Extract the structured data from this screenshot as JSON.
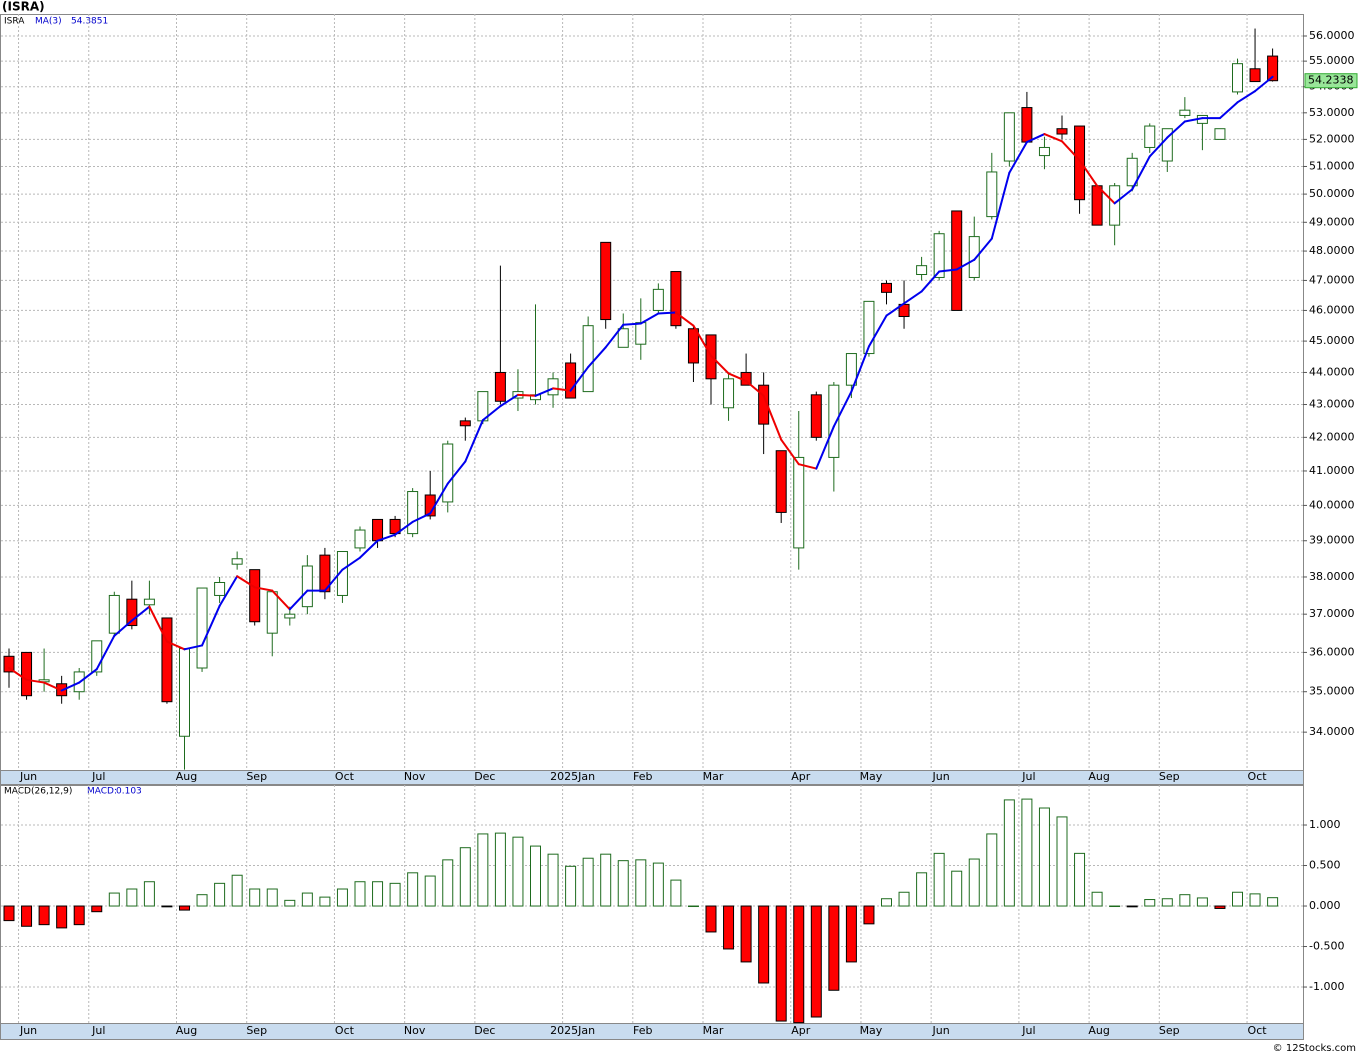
{
  "title": "(ISRA)",
  "footer": "© 12Stocks.com",
  "chart_data": [
    {
      "type": "candlestick",
      "symbol": "ISRA",
      "categories": [
        null,
        "Jun",
        null,
        null,
        null,
        "Jul",
        null,
        null,
        null,
        null,
        "Aug",
        null,
        null,
        null,
        "Sep",
        null,
        null,
        null,
        null,
        "Oct",
        null,
        null,
        null,
        "Nov",
        null,
        null,
        null,
        "Dec",
        null,
        null,
        null,
        null,
        "2025Jan",
        null,
        null,
        null,
        "Feb",
        null,
        null,
        null,
        "Mar",
        null,
        null,
        null,
        null,
        "Apr",
        null,
        null,
        null,
        "May",
        null,
        null,
        null,
        "Jun",
        null,
        null,
        null,
        null,
        "Jul",
        null,
        null,
        null,
        "Aug",
        null,
        null,
        null,
        "Sep",
        null,
        null,
        null,
        null,
        "Oct",
        null
      ],
      "open": [
        35.9,
        36.0,
        35.25,
        35.2,
        35.0,
        35.5,
        36.5,
        37.4,
        37.25,
        36.9,
        33.9,
        35.6,
        37.5,
        38.35,
        38.2,
        36.5,
        36.9,
        37.2,
        38.6,
        37.5,
        38.8,
        39.6,
        39.6,
        39.2,
        40.3,
        40.1,
        42.5,
        42.5,
        44.0,
        43.2,
        43.15,
        43.3,
        44.3,
        43.4,
        48.3,
        44.8,
        44.9,
        46.0,
        47.3,
        45.4,
        45.2,
        42.9,
        44.0,
        43.6,
        41.6,
        38.8,
        43.3,
        41.4,
        43.6,
        44.6,
        46.9,
        46.2,
        47.2,
        47.1,
        49.4,
        47.1,
        49.2,
        51.2,
        53.2,
        51.4,
        52.4,
        52.5,
        50.3,
        48.9,
        50.3,
        51.7,
        51.2,
        52.9,
        52.6,
        52.0,
        53.8,
        54.7,
        55.2
      ],
      "high": [
        36.1,
        36.0,
        36.1,
        35.4,
        35.6,
        36.3,
        37.6,
        37.9,
        37.9,
        36.9,
        36.1,
        37.7,
        38.0,
        38.7,
        38.2,
        37.6,
        37.2,
        38.6,
        38.8,
        38.7,
        39.4,
        39.6,
        39.7,
        40.5,
        41.0,
        41.9,
        42.6,
        43.4,
        47.5,
        44.1,
        46.2,
        44.0,
        44.6,
        45.8,
        48.3,
        45.9,
        46.4,
        46.9,
        47.3,
        45.5,
        45.2,
        44.0,
        44.6,
        44.0,
        41.6,
        42.8,
        43.4,
        43.7,
        44.6,
        46.3,
        47.0,
        47.0,
        47.8,
        48.7,
        49.4,
        49.2,
        51.5,
        53.0,
        53.8,
        52.1,
        52.9,
        52.5,
        50.3,
        50.4,
        51.5,
        52.6,
        52.4,
        53.6,
        52.9,
        52.4,
        55.1,
        56.3,
        55.5
      ],
      "low": [
        35.1,
        34.8,
        35.0,
        34.7,
        34.8,
        35.4,
        36.4,
        36.6,
        37.0,
        34.7,
        33.1,
        35.5,
        37.3,
        38.2,
        36.7,
        35.9,
        36.7,
        37.0,
        37.4,
        37.3,
        38.7,
        38.8,
        39.1,
        39.1,
        39.6,
        39.8,
        41.9,
        42.4,
        43.0,
        42.8,
        43.0,
        42.9,
        43.2,
        43.4,
        45.4,
        44.8,
        44.4,
        45.9,
        45.4,
        43.7,
        43.0,
        42.5,
        43.6,
        41.5,
        39.5,
        38.2,
        41.9,
        40.4,
        43.2,
        44.5,
        46.2,
        45.4,
        47.0,
        47.0,
        46.0,
        47.0,
        49.1,
        51.0,
        51.9,
        50.9,
        52.0,
        49.3,
        48.9,
        48.2,
        50.1,
        51.5,
        50.8,
        52.8,
        51.6,
        52.0,
        53.7,
        54.2,
        54.2
      ],
      "close": [
        35.5,
        34.9,
        35.3,
        34.9,
        35.5,
        36.3,
        37.5,
        36.7,
        37.4,
        34.75,
        36.1,
        37.7,
        37.85,
        38.5,
        36.8,
        37.6,
        37.0,
        38.3,
        37.6,
        38.7,
        39.3,
        39.0,
        39.2,
        40.4,
        39.7,
        41.8,
        42.35,
        43.4,
        43.1,
        43.4,
        43.3,
        43.8,
        43.2,
        45.5,
        45.7,
        45.4,
        45.6,
        46.7,
        45.5,
        44.3,
        43.8,
        43.8,
        43.6,
        42.4,
        39.8,
        41.4,
        42.0,
        43.6,
        44.6,
        46.3,
        46.6,
        45.8,
        47.5,
        48.6,
        46.0,
        48.5,
        50.8,
        53.0,
        51.9,
        51.7,
        52.2,
        49.8,
        48.9,
        50.3,
        51.3,
        52.5,
        52.4,
        53.1,
        52.9,
        52.4,
        54.9,
        54.2,
        54.2338
      ],
      "up_color": "#1e6b1e",
      "down_color": "#ff0000",
      "ma": {
        "name": "MA(3)",
        "up_color": "#0000ee",
        "down_color": "#ee0000",
        "values": [
          35.6,
          35.3,
          35.23,
          35.03,
          35.23,
          35.57,
          36.43,
          36.83,
          37.2,
          36.28,
          36.08,
          36.18,
          37.22,
          38.02,
          37.72,
          37.63,
          37.13,
          37.63,
          37.63,
          38.2,
          38.53,
          39.0,
          39.17,
          39.53,
          39.77,
          40.63,
          41.28,
          42.52,
          42.95,
          43.3,
          43.27,
          43.5,
          43.43,
          44.17,
          44.8,
          45.53,
          45.57,
          45.9,
          45.93,
          45.5,
          44.53,
          43.97,
          43.73,
          43.27,
          41.93,
          41.2,
          41.07,
          42.33,
          43.4,
          44.83,
          45.83,
          46.23,
          46.63,
          47.3,
          47.37,
          47.7,
          48.43,
          50.77,
          51.9,
          52.2,
          51.93,
          51.23,
          50.3,
          49.67,
          50.17,
          51.37,
          52.07,
          52.67,
          52.8,
          52.8,
          53.4,
          53.83,
          54.3851
        ]
      },
      "log_scale": true,
      "grid": true,
      "ylim": [
        33.09,
        56.89
      ],
      "yticks": [
        {
          "value": 34,
          "label": "34.0000"
        },
        {
          "value": 35,
          "label": "35.0000"
        },
        {
          "value": 36,
          "label": "36.0000"
        },
        {
          "value": 37,
          "label": "37.0000"
        },
        {
          "value": 38,
          "label": "38.0000"
        },
        {
          "value": 39,
          "label": "39.0000"
        },
        {
          "value": 40,
          "label": "40.0000"
        },
        {
          "value": 41,
          "label": "41.0000"
        },
        {
          "value": 42,
          "label": "42.0000"
        },
        {
          "value": 43,
          "label": "43.0000"
        },
        {
          "value": 44,
          "label": "44.0000"
        },
        {
          "value": 45,
          "label": "45.0000"
        },
        {
          "value": 46,
          "label": "46.0000"
        },
        {
          "value": 47,
          "label": "47.0000"
        },
        {
          "value": 48,
          "label": "48.0000"
        },
        {
          "value": 49,
          "label": "49.0000"
        },
        {
          "value": 50,
          "label": "50.0000"
        },
        {
          "value": 51,
          "label": "51.0000"
        },
        {
          "value": 52,
          "label": "52.0000"
        },
        {
          "value": 53,
          "label": "53.0000"
        },
        {
          "value": 54,
          "label": "54.0000"
        },
        {
          "value": 55,
          "label": "55.0000"
        },
        {
          "value": 56,
          "label": "56.0000"
        }
      ]
    },
    {
      "type": "bar",
      "name": "MACD(26,12,9)",
      "value_name": "MACD:",
      "categories": [
        null,
        "Jun",
        null,
        null,
        null,
        "Jul",
        null,
        null,
        null,
        null,
        "Aug",
        null,
        null,
        null,
        "Sep",
        null,
        null,
        null,
        null,
        "Oct",
        null,
        null,
        null,
        "Nov",
        null,
        null,
        null,
        "Dec",
        null,
        null,
        null,
        null,
        "2025Jan",
        null,
        null,
        null,
        "Feb",
        null,
        null,
        null,
        "Mar",
        null,
        null,
        null,
        null,
        "Apr",
        null,
        null,
        null,
        "May",
        null,
        null,
        null,
        "Jun",
        null,
        null,
        null,
        null,
        "Jul",
        null,
        null,
        null,
        "Aug",
        null,
        null,
        null,
        "Sep",
        null,
        null,
        null,
        null,
        "Oct",
        null
      ],
      "values": [
        -0.18,
        -0.25,
        -0.23,
        -0.27,
        -0.23,
        -0.07,
        0.16,
        0.21,
        0.3,
        -0.01,
        -0.05,
        0.14,
        0.28,
        0.38,
        0.21,
        0.21,
        0.07,
        0.16,
        0.11,
        0.21,
        0.3,
        0.3,
        0.28,
        0.41,
        0.37,
        0.57,
        0.72,
        0.89,
        0.9,
        0.85,
        0.74,
        0.64,
        0.49,
        0.59,
        0.64,
        0.56,
        0.57,
        0.53,
        0.32,
        0.0,
        -0.32,
        -0.53,
        -0.69,
        -0.95,
        -1.42,
        -1.44,
        -1.37,
        -1.04,
        -0.69,
        -0.22,
        0.09,
        0.17,
        0.41,
        0.65,
        0.43,
        0.58,
        0.89,
        1.31,
        1.32,
        1.21,
        1.1,
        0.65,
        0.17,
        0.0,
        -0.01,
        0.08,
        0.09,
        0.14,
        0.1,
        -0.03,
        0.17,
        0.15,
        0.103
      ],
      "up_color": "#1e6b1e",
      "down_color": "#ff0000",
      "grid": true,
      "ylim": [
        -1.444,
        1.494
      ],
      "yticks": [
        {
          "value": -1,
          "label": "-1.000"
        },
        {
          "value": -0.5,
          "label": "-0.500"
        },
        {
          "value": 0,
          "label": "0.000"
        },
        {
          "value": 0.5,
          "label": "0.500"
        },
        {
          "value": 1,
          "label": "1.000"
        }
      ]
    }
  ]
}
